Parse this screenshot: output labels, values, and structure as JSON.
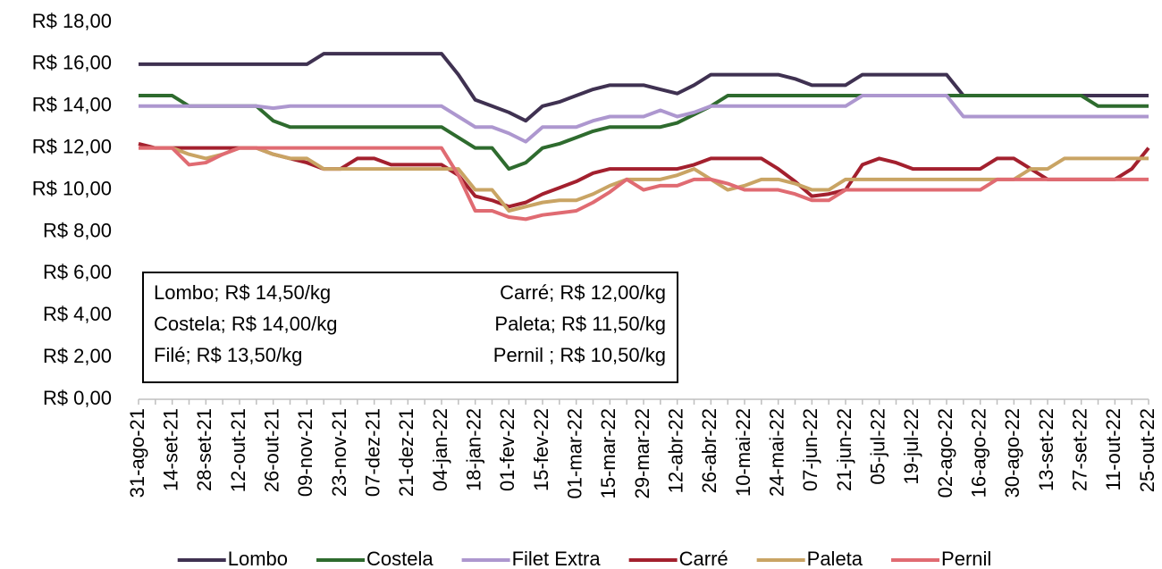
{
  "chart_data": {
    "type": "line",
    "categories": [
      "31-ago-21",
      null,
      "14-set-21",
      null,
      "28-set-21",
      null,
      "12-out-21",
      null,
      "26-out-21",
      null,
      "09-nov-21",
      null,
      "23-nov-21",
      null,
      "07-dez-21",
      null,
      "21-dez-21",
      null,
      "04-jan-22",
      null,
      "18-jan-22",
      null,
      "01-fev-22",
      null,
      "15-fev-22",
      null,
      "01-mar-22",
      null,
      "15-mar-22",
      null,
      "29-mar-22",
      null,
      "12-abr-22",
      null,
      "26-abr-22",
      null,
      "10-mai-22",
      null,
      "24-mai-22",
      null,
      "07-jun-22",
      null,
      "21-jun-22",
      null,
      "05-jul-22",
      null,
      "19-jul-22",
      null,
      "02-ago-22",
      null,
      "16-ago-22",
      null,
      "30-ago-22",
      null,
      "13-set-22",
      null,
      "27-set-22",
      null,
      "11-out-22",
      null,
      "25-out-22"
    ],
    "series": [
      {
        "name": "Lombo",
        "color": "#3f3151",
        "values": [
          16,
          16,
          16,
          16,
          16,
          16,
          16,
          16,
          16,
          16,
          16,
          16.5,
          16.5,
          16.5,
          16.5,
          16.5,
          16.5,
          16.5,
          16.5,
          15.5,
          14.3,
          14,
          13.7,
          13.3,
          14,
          14.2,
          14.5,
          14.8,
          15,
          15,
          15,
          14.8,
          14.6,
          15,
          15.5,
          15.5,
          15.5,
          15.5,
          15.5,
          15.3,
          15,
          15,
          15,
          15.5,
          15.5,
          15.5,
          15.5,
          15.5,
          15.5,
          14.5,
          14.5,
          14.5,
          14.5,
          14.5,
          14.5,
          14.5,
          14.5,
          14.5,
          14.5,
          14.5,
          14.5
        ]
      },
      {
        "name": "Costela",
        "color": "#2e6b2e",
        "values": [
          14.5,
          14.5,
          14.5,
          14,
          14,
          14,
          14,
          14,
          13.3,
          13,
          13,
          13,
          13,
          13,
          13,
          13,
          13,
          13,
          13,
          12.5,
          12,
          12,
          11,
          11.3,
          12,
          12.2,
          12.5,
          12.8,
          13,
          13,
          13,
          13,
          13.2,
          13.6,
          14,
          14.5,
          14.5,
          14.5,
          14.5,
          14.5,
          14.5,
          14.5,
          14.5,
          14.5,
          14.5,
          14.5,
          14.5,
          14.5,
          14.5,
          14.5,
          14.5,
          14.5,
          14.5,
          14.5,
          14.5,
          14.5,
          14.5,
          14,
          14,
          14,
          14
        ]
      },
      {
        "name": "Filet Extra",
        "color": "#ad97cf",
        "values": [
          14,
          14,
          14,
          14,
          14,
          14,
          14,
          14,
          13.9,
          14,
          14,
          14,
          14,
          14,
          14,
          14,
          14,
          14,
          14,
          13.5,
          13,
          13,
          12.7,
          12.3,
          13,
          13,
          13,
          13.3,
          13.5,
          13.5,
          13.5,
          13.8,
          13.5,
          13.7,
          14,
          14,
          14,
          14,
          14,
          14,
          14,
          14,
          14,
          14.5,
          14.5,
          14.5,
          14.5,
          14.5,
          14.5,
          13.5,
          13.5,
          13.5,
          13.5,
          13.5,
          13.5,
          13.5,
          13.5,
          13.5,
          13.5,
          13.5,
          13.5
        ]
      },
      {
        "name": "Carré",
        "color": "#a3202e",
        "values": [
          12.2,
          12,
          12,
          12,
          12,
          12,
          12,
          12,
          11.7,
          11.5,
          11.3,
          11,
          11,
          11.5,
          11.5,
          11.2,
          11.2,
          11.2,
          11.2,
          10.7,
          9.7,
          9.5,
          9.2,
          9.4,
          9.8,
          10.1,
          10.4,
          10.8,
          11,
          11,
          11,
          11,
          11,
          11.2,
          11.5,
          11.5,
          11.5,
          11.5,
          11,
          10.4,
          9.7,
          9.8,
          10,
          11.2,
          11.5,
          11.3,
          11,
          11,
          11,
          11,
          11,
          11.5,
          11.5,
          11,
          10.5,
          10.5,
          10.5,
          10.5,
          10.5,
          11,
          12
        ]
      },
      {
        "name": "Paleta",
        "color": "#c9a464",
        "values": [
          12,
          12,
          12,
          11.7,
          11.5,
          11.7,
          12,
          12,
          11.7,
          11.5,
          11.5,
          11,
          11,
          11,
          11,
          11,
          11,
          11,
          11,
          11,
          10,
          10,
          9,
          9.2,
          9.4,
          9.5,
          9.5,
          9.8,
          10.2,
          10.5,
          10.5,
          10.5,
          10.7,
          11,
          10.5,
          10,
          10.2,
          10.5,
          10.5,
          10.3,
          10,
          10,
          10.5,
          10.5,
          10.5,
          10.5,
          10.5,
          10.5,
          10.5,
          10.5,
          10.5,
          10.5,
          10.5,
          11,
          11,
          11.5,
          11.5,
          11.5,
          11.5,
          11.5,
          11.5
        ]
      },
      {
        "name": "Pernil",
        "color": "#e06b72",
        "values": [
          12,
          12,
          12,
          11.2,
          11.3,
          11.7,
          12,
          12,
          12,
          12,
          12,
          12,
          12,
          12,
          12,
          12,
          12,
          12,
          12,
          10.7,
          9,
          9,
          8.7,
          8.6,
          8.8,
          8.9,
          9,
          9.4,
          9.9,
          10.5,
          10,
          10.2,
          10.2,
          10.5,
          10.5,
          10.3,
          10,
          10,
          10,
          9.8,
          9.5,
          9.5,
          10,
          10,
          10,
          10,
          10,
          10,
          10,
          10,
          10,
          10.5,
          10.5,
          10.5,
          10.5,
          10.5,
          10.5,
          10.5,
          10.5,
          10.5,
          10.5
        ]
      }
    ],
    "ylim": [
      0,
      18
    ],
    "yticks": [
      {
        "value": 0,
        "label": "R$ 0,00"
      },
      {
        "value": 2,
        "label": "R$ 2,00"
      },
      {
        "value": 4,
        "label": "R$ 4,00"
      },
      {
        "value": 6,
        "label": "R$ 6,00"
      },
      {
        "value": 8,
        "label": "R$ 8,00"
      },
      {
        "value": 10,
        "label": "R$ 10,00"
      },
      {
        "value": 12,
        "label": "R$ 12,00"
      },
      {
        "value": 14,
        "label": "R$ 14,00"
      },
      {
        "value": 16,
        "label": "R$ 16,00"
      },
      {
        "value": 18,
        "label": "R$ 18,00"
      }
    ],
    "annotations": [
      "Lombo; R$ 14,50/kg",
      "Costela; R$ 14,00/kg",
      "Filé; R$ 13,50/kg",
      "Carré; R$ 12,00/kg",
      "Paleta; R$ 11,50/kg",
      "Pernil ; R$ 10,50/kg"
    ],
    "legend": "bottom",
    "grid": false
  }
}
